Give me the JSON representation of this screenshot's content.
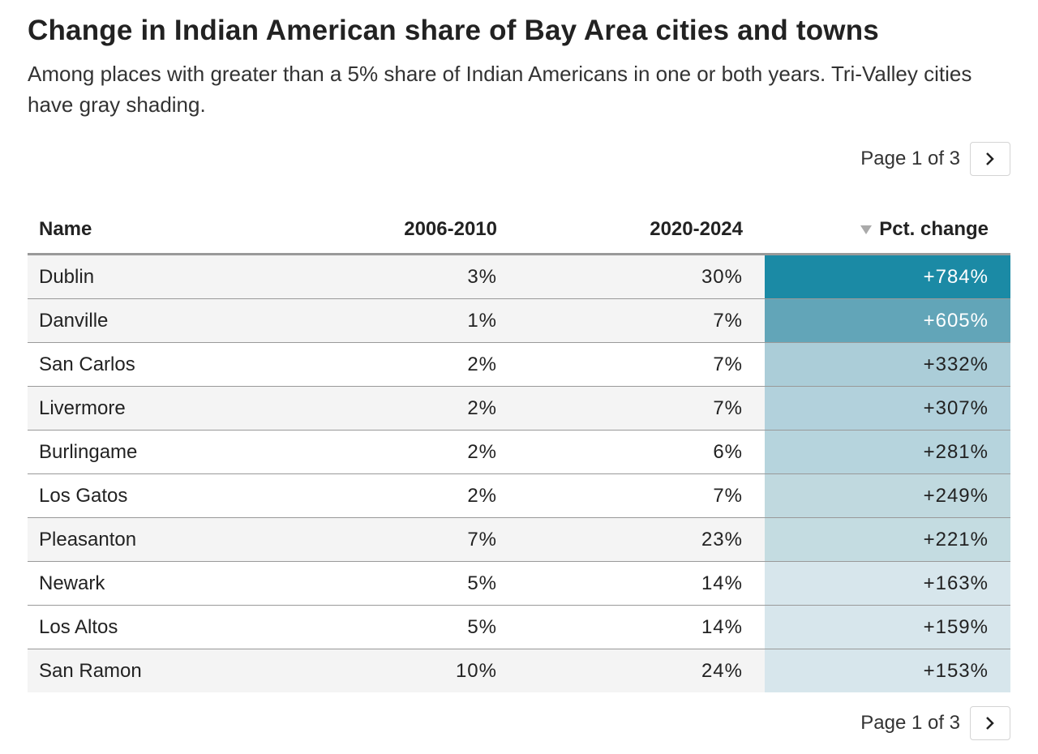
{
  "header": {
    "title": "Change in Indian American share of Bay Area cities and towns",
    "subtitle": "Among places with greater than a 5% share of Indian Americans in one or both years. Tri-Valley cities have gray shading."
  },
  "pagination": {
    "top": "Page 1 of 3",
    "bottom": "Page 1 of 3"
  },
  "table": {
    "columns": [
      "Name",
      "2006-2010",
      "2020-2024",
      "Pct. change"
    ],
    "rows": [
      [
        "Dublin",
        "3%",
        "30%",
        "+784%"
      ],
      [
        "Danville",
        "1%",
        "7%",
        "+605%"
      ],
      [
        "San Carlos",
        "2%",
        "7%",
        "+332%"
      ],
      [
        "Livermore",
        "2%",
        "7%",
        "+307%"
      ],
      [
        "Burlingame",
        "2%",
        "6%",
        "+281%"
      ],
      [
        "Los Gatos",
        "2%",
        "7%",
        "+249%"
      ],
      [
        "Pleasanton",
        "7%",
        "23%",
        "+221%"
      ],
      [
        "Newark",
        "5%",
        "14%",
        "+163%"
      ],
      [
        "Los Altos",
        "5%",
        "14%",
        "+159%"
      ],
      [
        "San Ramon",
        "10%",
        "24%",
        "+153%"
      ]
    ]
  }
}
